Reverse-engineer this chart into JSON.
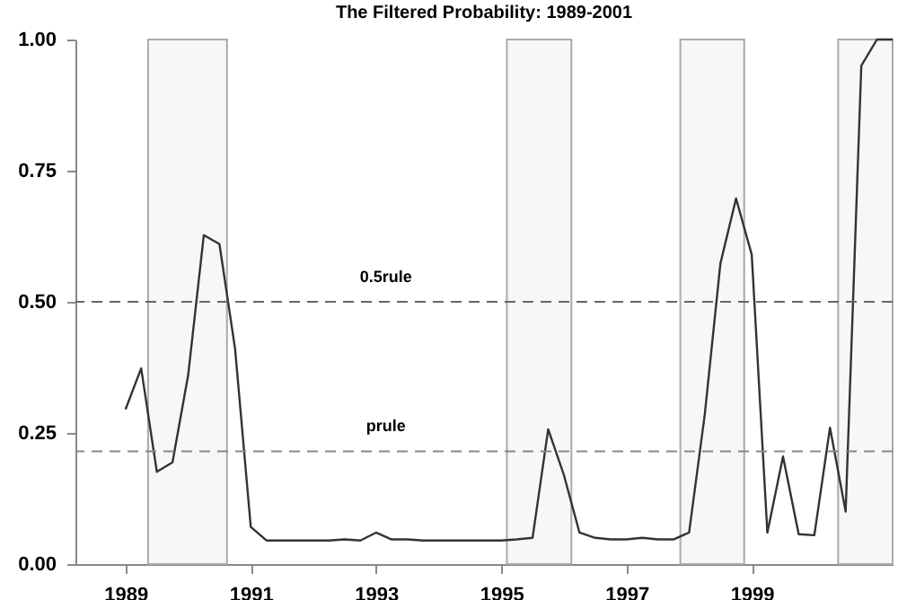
{
  "chart_data": {
    "type": "line",
    "title": "The Filtered Probability: 1989-2001",
    "x": [
      1989,
      1989.25,
      1989.5,
      1989.75,
      1990,
      1990.25,
      1990.5,
      1990.75,
      1991,
      1991.25,
      1991.5,
      1991.75,
      1992,
      1992.25,
      1992.5,
      1992.75,
      1993,
      1993.25,
      1993.5,
      1993.75,
      1994,
      1994.25,
      1994.5,
      1994.75,
      1995,
      1995.25,
      1995.5,
      1995.75,
      1996,
      1996.25,
      1996.5,
      1996.75,
      1997,
      1997.25,
      1997.5,
      1997.75,
      1998,
      1998.25,
      1998.5,
      1998.75,
      1999,
      1999.25,
      1999.5,
      1999.75,
      2000,
      2000.25,
      2000.5,
      2000.75,
      2001,
      2001.25
    ],
    "series": [
      {
        "color": "#333333",
        "values": [
          0.295,
          0.373,
          0.176,
          0.194,
          0.36,
          0.627,
          0.61,
          0.41,
          0.071,
          0.045,
          0.045,
          0.045,
          0.045,
          0.045,
          0.047,
          0.045,
          0.06,
          0.047,
          0.047,
          0.045,
          0.045,
          0.045,
          0.045,
          0.045,
          0.045,
          0.047,
          0.05,
          0.257,
          0.17,
          0.06,
          0.05,
          0.047,
          0.047,
          0.05,
          0.047,
          0.047,
          0.06,
          0.285,
          0.573,
          0.697,
          0.59,
          0.06,
          0.205,
          0.057,
          0.055,
          0.26,
          0.1,
          0.95,
          1.0,
          1.0
        ]
      }
    ],
    "xlim": [
      1988.2,
      2001.25
    ],
    "xticks": [
      1989,
      1991,
      1993,
      1995,
      1997,
      1999
    ],
    "ylim": [
      0,
      1
    ],
    "yticks": [
      {
        "value": 0,
        "label": "0.00"
      },
      {
        "value": 0.25,
        "label": "0.25"
      },
      {
        "value": 0.5,
        "label": "0.50"
      },
      {
        "value": 0.75,
        "label": "0.75"
      },
      {
        "value": 1,
        "label": "1.00"
      }
    ],
    "ref_lines": [
      {
        "axis": "y",
        "value": 0.5,
        "label": "0.5rule",
        "line_style": "dashed",
        "color": "#666666"
      },
      {
        "axis": "y",
        "value": 0.215,
        "label": "prule",
        "line_style": "dashed",
        "color": "#888888"
      }
    ],
    "bands": [
      {
        "axis": "x",
        "from": 1989.36,
        "to": 1990.62,
        "color": "#f7f7f7"
      },
      {
        "axis": "x",
        "from": 1995.09,
        "to": 1996.12,
        "color": "#f7f7f7"
      },
      {
        "axis": "x",
        "from": 1997.86,
        "to": 1998.88,
        "color": "#f7f7f7"
      },
      {
        "axis": "x",
        "from": 2000.38,
        "to": 2001.25,
        "color": "#f7f7f7"
      }
    ],
    "grid": false,
    "line_style": "solid",
    "marker": "none"
  }
}
